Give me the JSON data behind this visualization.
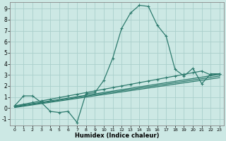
{
  "xlabel": "Humidex (Indice chaleur)",
  "bg_color": "#cce8e4",
  "grid_color": "#aacfcc",
  "line_color": "#2e7b6e",
  "xlim": [
    -0.5,
    23.5
  ],
  "ylim": [
    -1.6,
    9.6
  ],
  "xticks": [
    0,
    1,
    2,
    3,
    4,
    5,
    6,
    7,
    8,
    9,
    10,
    11,
    12,
    13,
    14,
    15,
    16,
    17,
    18,
    19,
    20,
    21,
    22,
    23
  ],
  "yticks": [
    -1,
    0,
    1,
    2,
    3,
    4,
    5,
    6,
    7,
    8,
    9
  ],
  "line1_x": [
    0,
    1,
    2,
    3,
    4,
    5,
    6,
    7,
    8,
    9,
    10,
    11,
    12,
    13,
    14,
    15,
    16,
    17,
    18,
    19,
    20,
    21,
    22,
    23
  ],
  "line1_y": [
    0.2,
    1.1,
    1.1,
    0.5,
    -0.3,
    -0.4,
    -0.3,
    -1.3,
    1.3,
    1.4,
    2.5,
    4.5,
    7.2,
    8.6,
    9.3,
    9.2,
    7.5,
    6.5,
    3.5,
    2.9,
    3.6,
    2.2,
    3.1,
    3.1
  ],
  "line2_x": [
    0,
    1,
    2,
    3,
    4,
    5,
    6,
    7,
    8,
    9,
    10,
    11,
    12,
    13,
    14,
    15,
    16,
    17,
    18,
    19,
    20,
    21,
    22,
    23
  ],
  "line2_y": [
    0.2,
    0.35,
    0.5,
    0.65,
    0.8,
    0.95,
    1.1,
    1.25,
    1.4,
    1.55,
    1.7,
    1.85,
    2.0,
    2.15,
    2.3,
    2.45,
    2.6,
    2.75,
    2.9,
    3.05,
    3.2,
    3.35,
    3.0,
    3.1
  ],
  "line3_x": [
    0,
    23
  ],
  "line3_y": [
    0.15,
    3.05
  ],
  "line4_x": [
    0,
    23
  ],
  "line4_y": [
    0.1,
    2.9
  ],
  "line5_x": [
    0,
    23
  ],
  "line5_y": [
    0.05,
    2.75
  ]
}
